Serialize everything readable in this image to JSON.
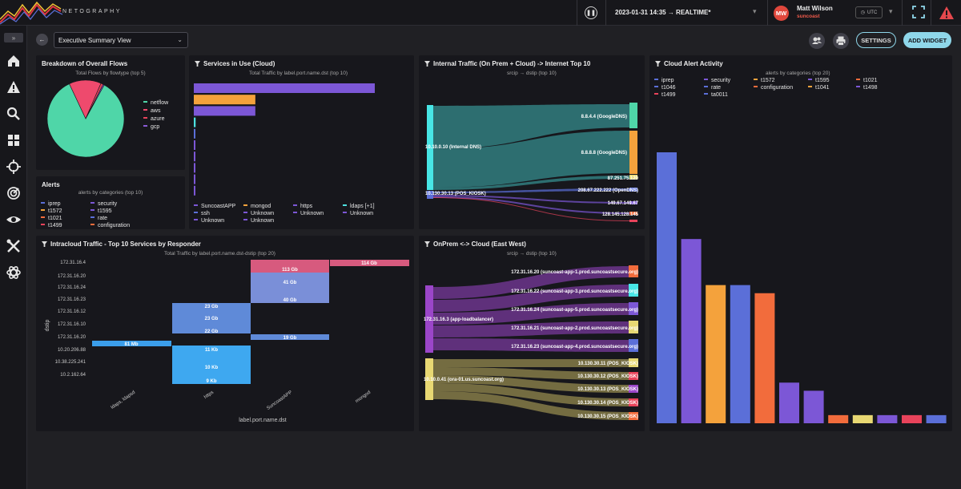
{
  "topbar": {
    "logo_text": "NETOGRAPHY",
    "date_range": "2023-01-31 14:35 → REALTIME*",
    "user": {
      "initials": "MW",
      "name": "Matt Wilson",
      "org": "suncoast"
    },
    "timezone": "UTC"
  },
  "sidebar": {
    "toggle": "»",
    "items": [
      "home",
      "alerts",
      "search",
      "dashboards",
      "target",
      "radar",
      "visibility",
      "tools",
      "integrations"
    ]
  },
  "toolbar": {
    "back": "←",
    "view": "Executive Summary View",
    "settings": "SETTINGS",
    "add_widget": "ADD WIDGET"
  },
  "colors": {
    "accent": "#8fd7ea",
    "netflow": "#4fd6a8",
    "aws": "#ee4a6d",
    "azure": "#e8435b",
    "gcp": "#8a5bd6"
  },
  "panels": {
    "flows": {
      "title": "Breakdown of Overall Flows",
      "subtitle": "Total Flows by flowtype (top 5)",
      "legend": [
        "netflow",
        "aws",
        "azure",
        "gcp"
      ],
      "chart_data": {
        "type": "pie",
        "title": "Breakdown of Overall Flows",
        "categories": [
          "netflow",
          "aws",
          "azure",
          "gcp"
        ],
        "values": [
          85,
          13.5,
          1,
          0.5
        ]
      }
    },
    "alerts": {
      "title": "Alerts",
      "subtitle": "alerts by categories (top 10)",
      "legend": [
        "iprep",
        "security",
        "t1572",
        "t1595",
        "t1021",
        "rate",
        "t1499",
        "configuration"
      ]
    },
    "services": {
      "title": "Services in Use (Cloud)",
      "subtitle": "Total Traffic by label.port.name.dst (top 10)",
      "legend": [
        "SuncoastAPP",
        "mongod",
        "https",
        "ldaps [+1]",
        "ssh",
        "Unknown",
        "Unknown",
        "Unknown",
        "Unknown",
        "Unknown"
      ],
      "chart_data": {
        "type": "bar",
        "orientation": "horizontal",
        "categories": [
          "SuncoastAPP",
          "mongod",
          "https",
          "ldaps [+1]",
          "ssh",
          "Unknown",
          "Unknown",
          "Unknown",
          "Unknown",
          "Unknown"
        ],
        "values": [
          100,
          34,
          34,
          1,
          0.6,
          0.6,
          0.6,
          0.6,
          0.6,
          0.6
        ]
      }
    },
    "internal": {
      "title": "Internal Traffic (On Prem + Cloud) -> Internet Top 10",
      "subtitle": "srcip → dstip (top 10)",
      "sources": [
        "10.10.0.10 (Internal DNS)",
        "10.130.30.13 (POS_KIOSK)"
      ],
      "targets": [
        "8.8.4.4 (GoogleDNS)",
        "8.8.8.8 (GoogleDNS)",
        "87.251.75.120",
        "208.67.222.222 (OpenDNS)",
        "149.67.149.67",
        "128.145.128.145"
      ]
    },
    "cloud_alerts": {
      "title": "Cloud Alert Activity",
      "subtitle": "alerts by categories (top 20)",
      "legend": [
        "iprep",
        "security",
        "t1572",
        "t1595",
        "t1021",
        "t1046",
        "rate",
        "configuration",
        "t1041",
        "t1498",
        "t1499",
        "ta0011"
      ],
      "chart_data": {
        "type": "bar",
        "categories": [
          "iprep",
          "security",
          "t1572",
          "t1595",
          "t1021",
          "t1046",
          "rate",
          "configuration",
          "t1041",
          "t1498",
          "t1499",
          "ta0011"
        ],
        "values": [
          100,
          68,
          51,
          51,
          48,
          15,
          12,
          3,
          3,
          3,
          3,
          3
        ],
        "ylim": [
          0,
          100
        ]
      }
    },
    "intracloud": {
      "title": "Intracloud Traffic - Top 10 Services by Responder",
      "subtitle": "Total Traffic by label.port.name.dst-dstip (top 20)",
      "ylabel": "dstip",
      "xlabel": "label.port.name.dst",
      "yticks": [
        "172.31.16.4",
        "172.31.16.20",
        "172.31.16.24",
        "172.31.16.23",
        "172.31.16.12",
        "172.31.16.10",
        "172.31.16.20",
        "10.20.206.88",
        "10.38.225.241",
        "10.2.162.64"
      ],
      "xticks": [
        "ldaps, ldapsd",
        "https",
        "SuncoastAPP",
        "mongod"
      ],
      "cells": [
        "113 Gb",
        "41 Gb",
        "40 Gb",
        "23 Gb",
        "23 Gb",
        "22 Gb",
        "19 Gb",
        "81 Mb",
        "11 Kb",
        "10 Kb",
        "9 Kb",
        "114 Gb"
      ]
    },
    "onprem": {
      "title": "OnPrem <-> Cloud (East West)",
      "subtitle": "srcip → dstip (top 10)",
      "sources": [
        "172.31.16.3 (app-loadbalancer)",
        "10.10.0.41 (ora-01.us.suncoast.org)"
      ],
      "targets": [
        "172.31.16.20 (suncoast-app-1.prod.suncoastsecure.org)",
        "172.31.16.22 (suncoast-app-3.prod.suncoastsecure.org)",
        "172.31.16.24 (suncoast-app-5.prod.suncoastsecure.org)",
        "172.31.16.21 (suncoast-app-2.prod.suncoastsecure.org)",
        "172.31.16.23 (suncoast-app-4.prod.suncoastsecure.org)",
        "10.130.30.11 (POS_KIOSK)",
        "10.130.30.12 (POS_KIOSK)",
        "10.130.30.13 (POS_KIOSK)",
        "10.130.30.14 (POS_KIOSK)",
        "10.130.30.15 (POS_KIOSK)"
      ]
    }
  }
}
